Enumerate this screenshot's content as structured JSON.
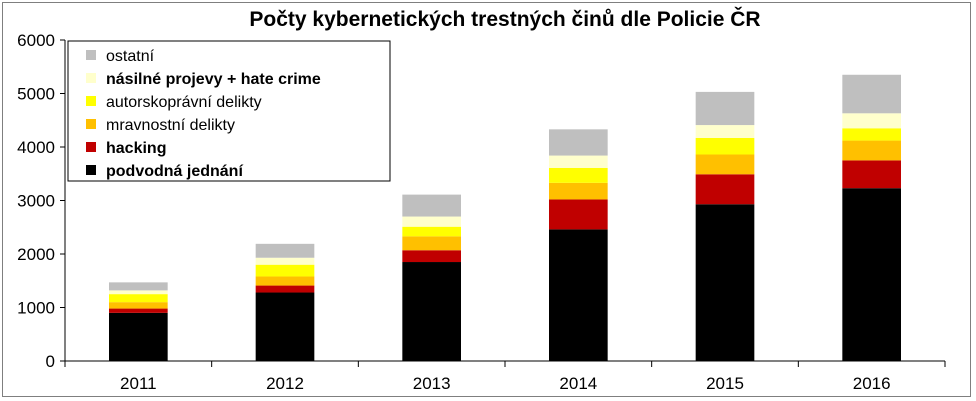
{
  "chart_data": {
    "type": "bar",
    "stacked": true,
    "title": "Počty kybernetických trestných činů dle Policie ČR",
    "xlabel": "",
    "ylabel": "",
    "ylim": [
      0,
      6000
    ],
    "yticks": [
      "0",
      "1000",
      "2000",
      "3000",
      "4000",
      "5000",
      "6000"
    ],
    "grid": false,
    "legend_position": "top-left",
    "categories": [
      "2011",
      "2012",
      "2013",
      "2014",
      "2015",
      "2016"
    ],
    "series": [
      {
        "name": "podvodná jednání",
        "color": "#000000",
        "bold": true,
        "values": [
          900,
          1280,
          1850,
          2460,
          2930,
          3230
        ]
      },
      {
        "name": "hacking",
        "color": "#c00000",
        "bold": true,
        "values": [
          80,
          130,
          220,
          560,
          560,
          520
        ]
      },
      {
        "name": "mravnostní delikty",
        "color": "#ffc000",
        "bold": false,
        "values": [
          120,
          170,
          260,
          310,
          370,
          370
        ]
      },
      {
        "name": "autorskoprávní delikty",
        "color": "#ffff00",
        "bold": false,
        "values": [
          150,
          220,
          180,
          280,
          310,
          230
        ]
      },
      {
        "name": "násilné projevy + hate crime",
        "color": "#ffffcc",
        "bold": true,
        "values": [
          70,
          130,
          190,
          230,
          240,
          280
        ]
      },
      {
        "name": "ostatní",
        "color": "#bfbfbf",
        "bold": false,
        "values": [
          150,
          260,
          410,
          490,
          620,
          720
        ]
      }
    ],
    "legend_order": [
      5,
      4,
      3,
      2,
      1,
      0
    ]
  }
}
